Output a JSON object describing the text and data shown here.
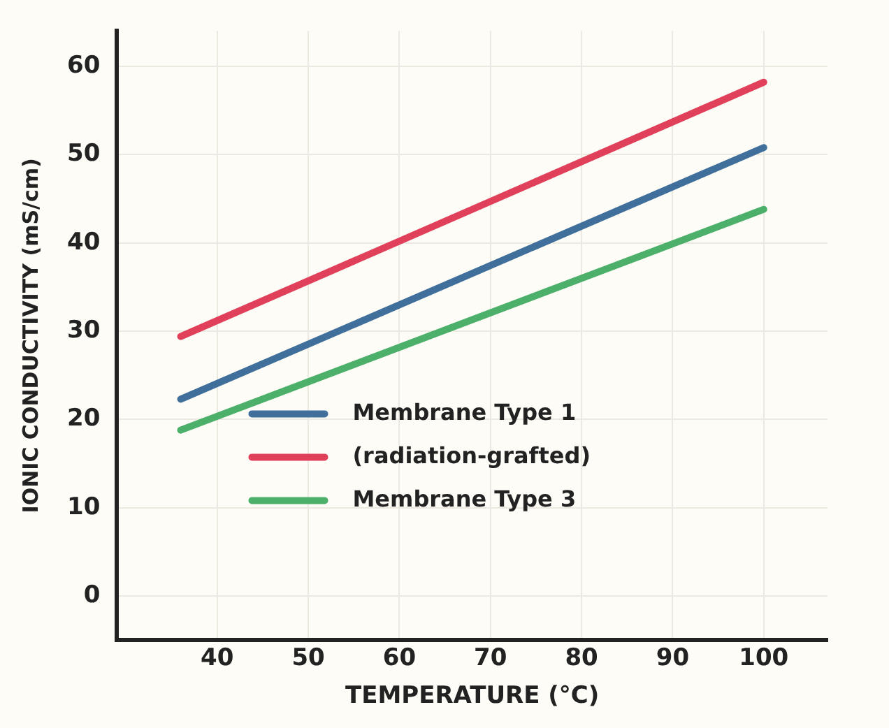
{
  "chart_data": {
    "type": "line",
    "xlabel": "TEMPERATURE (°C)",
    "ylabel": "IONIC CONDUCTIVITY (mS/cm)",
    "x": [
      36,
      100
    ],
    "series": [
      {
        "name": "Membrane Type 1",
        "color": "#3f6f9a",
        "values": [
          22.3,
          50.8
        ]
      },
      {
        "name": "(radiation-grafted)",
        "color": "#e0405a",
        "values": [
          29.4,
          58.2
        ]
      },
      {
        "name": "Membrane Type 3",
        "color": "#4caf6a",
        "values": [
          18.8,
          43.8
        ]
      }
    ],
    "xlim": [
      29,
      107
    ],
    "xticks": [
      40,
      50,
      60,
      70,
      80,
      90,
      100
    ],
    "ylim": [
      -5,
      64
    ],
    "yticks": [
      0,
      10,
      20,
      30,
      40,
      50,
      60
    ],
    "grid": true,
    "legend": "bottom",
    "marker": "none",
    "line_style": "solid"
  }
}
